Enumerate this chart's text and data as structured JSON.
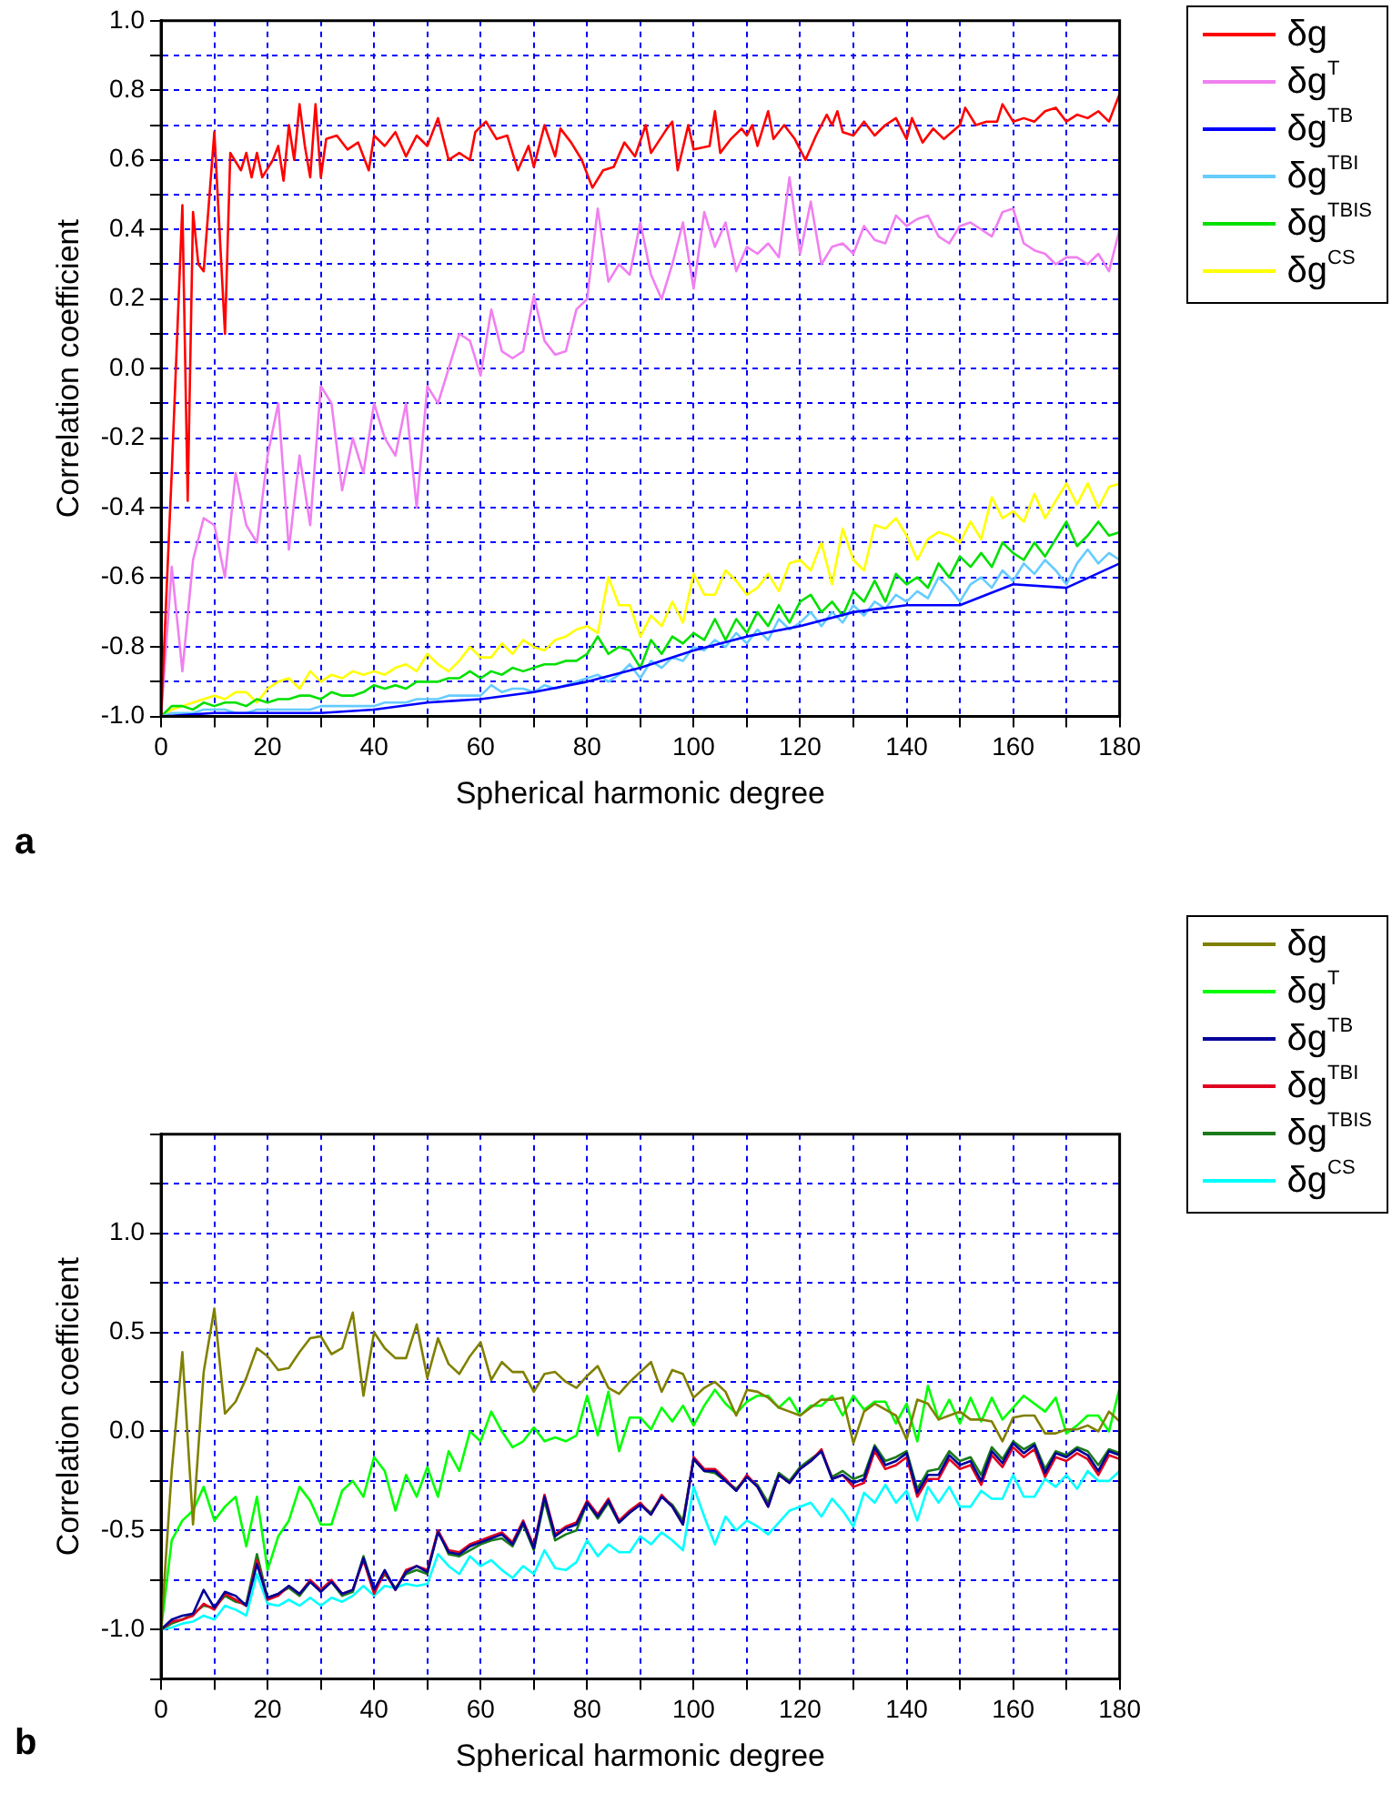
{
  "chart_data": [
    {
      "type": "line",
      "xlabel": "Spherical harmonic degree",
      "ylabel": "Correlation coefficient",
      "annotations": [
        "a"
      ],
      "xlim": [
        0,
        180
      ],
      "ylim": [
        -1,
        1
      ],
      "xticks": [
        0,
        {
          "value": 10,
          "label": null
        },
        20,
        {
          "value": 30,
          "label": null
        },
        40,
        {
          "value": 50,
          "label": null
        },
        60,
        {
          "value": 70,
          "label": null
        },
        80,
        {
          "value": 90,
          "label": null
        },
        100,
        {
          "value": 110,
          "label": null
        },
        120,
        {
          "value": 130,
          "label": null
        },
        140,
        {
          "value": 150,
          "label": null
        },
        160,
        {
          "value": 170,
          "label": null
        },
        180
      ],
      "yticks": [
        {
          "value": -1,
          "label": "-1.0"
        },
        {
          "value": -0.9,
          "label": null
        },
        {
          "value": -0.8,
          "label": "-0.8"
        },
        {
          "value": -0.7,
          "label": null
        },
        {
          "value": -0.6,
          "label": "-0.6"
        },
        {
          "value": -0.5,
          "label": null
        },
        {
          "value": -0.4,
          "label": "-0.4"
        },
        {
          "value": -0.3,
          "label": null
        },
        {
          "value": -0.2,
          "label": "-0.2"
        },
        {
          "value": -0.1,
          "label": null
        },
        {
          "value": 0,
          "label": "0.0"
        },
        {
          "value": 0.1,
          "label": null
        },
        {
          "value": 0.2,
          "label": "0.2"
        },
        {
          "value": 0.3,
          "label": null
        },
        {
          "value": 0.4,
          "label": "0.4"
        },
        {
          "value": 0.5,
          "label": null
        },
        {
          "value": 0.6,
          "label": "0.6"
        },
        {
          "value": 0.7,
          "label": null
        },
        {
          "value": 0.8,
          "label": "0.8"
        },
        {
          "value": 0.9,
          "label": null
        },
        {
          "value": 1,
          "label": "1.0"
        }
      ],
      "grid": true,
      "legend": "top right",
      "marker": "none",
      "line_style": "solid",
      "x": [
        0,
        2,
        4,
        6,
        8,
        10,
        12,
        14,
        16,
        18,
        20,
        22,
        24,
        26,
        28,
        30,
        32,
        34,
        36,
        38,
        40,
        42,
        44,
        46,
        48,
        50,
        52,
        54,
        56,
        58,
        60,
        62,
        64,
        66,
        68,
        70,
        72,
        74,
        76,
        78,
        80,
        82,
        84,
        86,
        88,
        90,
        92,
        94,
        96,
        98,
        100,
        102,
        104,
        106,
        108,
        110,
        112,
        114,
        116,
        118,
        120,
        122,
        124,
        126,
        128,
        130,
        132,
        134,
        136,
        138,
        140,
        142,
        144,
        146,
        148,
        150,
        152,
        154,
        156,
        158,
        160,
        162,
        164,
        166,
        168,
        170,
        172,
        174,
        176,
        178,
        180
      ],
      "series": [
        {
          "name": "δg",
          "color": "#ff0000",
          "x": [
            0,
            2,
            4,
            5,
            6,
            7,
            8,
            10,
            12,
            13,
            15,
            16,
            17,
            18,
            19,
            21,
            22,
            23,
            24,
            25,
            26,
            27,
            28,
            29,
            30,
            31,
            33,
            35,
            37,
            39,
            40,
            42,
            44,
            46,
            48,
            50,
            52,
            54,
            56,
            58,
            59,
            61,
            63,
            65,
            67,
            69,
            70,
            72,
            74,
            75,
            77,
            79,
            81,
            83,
            85,
            87,
            89,
            91,
            92,
            95,
            96,
            97,
            99,
            100,
            103,
            104,
            105,
            107,
            109,
            110,
            111,
            112,
            114,
            115,
            117,
            119,
            121,
            123,
            125,
            126,
            127,
            128,
            130,
            132,
            134,
            136,
            138,
            140,
            141,
            143,
            145,
            147,
            150,
            151,
            153,
            155,
            157,
            158,
            160,
            162,
            164,
            166,
            168,
            170,
            172,
            174,
            176,
            178,
            180
          ],
          "values": [
            -1,
            -0.3,
            0.47,
            -0.38,
            0.45,
            0.3,
            0.28,
            0.68,
            0.1,
            0.62,
            0.57,
            0.62,
            0.55,
            0.62,
            0.55,
            0.6,
            0.64,
            0.54,
            0.7,
            0.6,
            0.76,
            0.64,
            0.55,
            0.76,
            0.55,
            0.66,
            0.67,
            0.63,
            0.65,
            0.57,
            0.67,
            0.64,
            0.68,
            0.61,
            0.67,
            0.64,
            0.72,
            0.6,
            0.62,
            0.6,
            0.68,
            0.71,
            0.66,
            0.67,
            0.57,
            0.64,
            0.58,
            0.7,
            0.61,
            0.69,
            0.65,
            0.6,
            0.52,
            0.57,
            0.58,
            0.65,
            0.61,
            0.7,
            0.62,
            0.69,
            0.71,
            0.57,
            0.7,
            0.63,
            0.64,
            0.74,
            0.62,
            0.66,
            0.69,
            0.67,
            0.7,
            0.64,
            0.74,
            0.66,
            0.7,
            0.66,
            0.6,
            0.67,
            0.73,
            0.7,
            0.74,
            0.68,
            0.67,
            0.71,
            0.67,
            0.7,
            0.72,
            0.66,
            0.72,
            0.65,
            0.69,
            0.66,
            0.7,
            0.75,
            0.7,
            0.71,
            0.71,
            0.76,
            0.71,
            0.72,
            0.71,
            0.74,
            0.75,
            0.71,
            0.73,
            0.72,
            0.74,
            0.71,
            0.79
          ]
        },
        {
          "name": "δg$^{T}$",
          "color": "#f080f0",
          "values": [
            -1,
            -0.57,
            -0.87,
            -0.55,
            -0.43,
            -0.45,
            -0.6,
            -0.3,
            -0.45,
            -0.5,
            -0.25,
            -0.1,
            -0.52,
            -0.25,
            -0.45,
            -0.05,
            -0.1,
            -0.35,
            -0.2,
            -0.3,
            -0.1,
            -0.2,
            -0.25,
            -0.1,
            -0.4,
            -0.05,
            -0.1,
            0,
            0.1,
            0.08,
            -0.02,
            0.17,
            0.05,
            0.03,
            0.05,
            0.21,
            0.08,
            0.04,
            0.05,
            0.17,
            0.2,
            0.46,
            0.25,
            0.3,
            0.27,
            0.42,
            0.27,
            0.2,
            0.3,
            0.42,
            0.23,
            0.45,
            0.35,
            0.42,
            0.28,
            0.35,
            0.33,
            0.36,
            0.32,
            0.55,
            0.33,
            0.48,
            0.3,
            0.35,
            0.36,
            0.33,
            0.41,
            0.37,
            0.36,
            0.44,
            0.41,
            0.43,
            0.44,
            0.38,
            0.36,
            0.41,
            0.42,
            0.4,
            0.38,
            0.45,
            0.46,
            0.36,
            0.34,
            0.33,
            0.3,
            0.32,
            0.32,
            0.3,
            0.33,
            0.28,
            0.4
          ]
        },
        {
          "name": "δg$^{TB}$",
          "color": "#0000ff",
          "x": [
            0,
            10,
            20,
            30,
            40,
            50,
            60,
            70,
            80,
            90,
            100,
            110,
            120,
            130,
            140,
            150,
            160,
            170,
            180
          ],
          "values": [
            -1,
            -0.99,
            -0.99,
            -0.99,
            -0.98,
            -0.96,
            -0.95,
            -0.93,
            -0.9,
            -0.86,
            -0.81,
            -0.77,
            -0.74,
            -0.7,
            -0.68,
            -0.68,
            -0.62,
            -0.63,
            -0.56
          ]
        },
        {
          "name": "δg$^{TBI}$",
          "color": "#66ccff",
          "values": [
            -1,
            -0.99,
            -0.99,
            -0.99,
            -0.98,
            -0.98,
            -0.98,
            -0.99,
            -0.99,
            -0.98,
            -0.98,
            -0.98,
            -0.98,
            -0.98,
            -0.98,
            -0.97,
            -0.97,
            -0.97,
            -0.97,
            -0.97,
            -0.97,
            -0.96,
            -0.96,
            -0.96,
            -0.95,
            -0.95,
            -0.95,
            -0.94,
            -0.94,
            -0.94,
            -0.94,
            -0.91,
            -0.93,
            -0.92,
            -0.92,
            -0.93,
            -0.91,
            -0.92,
            -0.91,
            -0.9,
            -0.89,
            -0.88,
            -0.9,
            -0.88,
            -0.85,
            -0.89,
            -0.84,
            -0.86,
            -0.83,
            -0.84,
            -0.8,
            -0.81,
            -0.78,
            -0.8,
            -0.76,
            -0.79,
            -0.75,
            -0.78,
            -0.72,
            -0.75,
            -0.73,
            -0.7,
            -0.74,
            -0.7,
            -0.73,
            -0.68,
            -0.71,
            -0.67,
            -0.69,
            -0.65,
            -0.67,
            -0.64,
            -0.66,
            -0.6,
            -0.63,
            -0.67,
            -0.62,
            -0.6,
            -0.63,
            -0.58,
            -0.61,
            -0.56,
            -0.59,
            -0.55,
            -0.58,
            -0.62,
            -0.56,
            -0.52,
            -0.56,
            -0.53,
            -0.55
          ]
        },
        {
          "name": "δg$^{TBIS}$",
          "color": "#00e000",
          "values": [
            -1,
            -0.97,
            -0.97,
            -0.98,
            -0.96,
            -0.97,
            -0.96,
            -0.96,
            -0.97,
            -0.95,
            -0.96,
            -0.95,
            -0.95,
            -0.94,
            -0.94,
            -0.95,
            -0.93,
            -0.94,
            -0.94,
            -0.93,
            -0.91,
            -0.92,
            -0.91,
            -0.92,
            -0.9,
            -0.9,
            -0.9,
            -0.89,
            -0.89,
            -0.87,
            -0.89,
            -0.87,
            -0.88,
            -0.86,
            -0.87,
            -0.86,
            -0.85,
            -0.85,
            -0.84,
            -0.84,
            -0.82,
            -0.77,
            -0.82,
            -0.8,
            -0.81,
            -0.86,
            -0.78,
            -0.82,
            -0.77,
            -0.79,
            -0.76,
            -0.78,
            -0.72,
            -0.78,
            -0.72,
            -0.76,
            -0.7,
            -0.74,
            -0.68,
            -0.73,
            -0.67,
            -0.65,
            -0.7,
            -0.67,
            -0.71,
            -0.64,
            -0.67,
            -0.61,
            -0.67,
            -0.59,
            -0.62,
            -0.6,
            -0.63,
            -0.56,
            -0.6,
            -0.54,
            -0.57,
            -0.53,
            -0.57,
            -0.5,
            -0.53,
            -0.55,
            -0.5,
            -0.54,
            -0.49,
            -0.44,
            -0.51,
            -0.48,
            -0.44,
            -0.48,
            -0.47
          ]
        },
        {
          "name": "δg$^{CS}$",
          "color": "#ffff00",
          "values": [
            -1,
            -0.98,
            -0.97,
            -0.96,
            -0.95,
            -0.94,
            -0.95,
            -0.93,
            -0.93,
            -0.96,
            -0.92,
            -0.9,
            -0.89,
            -0.92,
            -0.87,
            -0.9,
            -0.88,
            -0.89,
            -0.87,
            -0.88,
            -0.87,
            -0.88,
            -0.86,
            -0.85,
            -0.87,
            -0.82,
            -0.85,
            -0.87,
            -0.84,
            -0.8,
            -0.83,
            -0.83,
            -0.79,
            -0.82,
            -0.78,
            -0.8,
            -0.81,
            -0.78,
            -0.77,
            -0.75,
            -0.74,
            -0.76,
            -0.6,
            -0.68,
            -0.68,
            -0.77,
            -0.71,
            -0.74,
            -0.67,
            -0.73,
            -0.59,
            -0.65,
            -0.65,
            -0.58,
            -0.61,
            -0.65,
            -0.63,
            -0.59,
            -0.64,
            -0.56,
            -0.55,
            -0.58,
            -0.5,
            -0.62,
            -0.46,
            -0.55,
            -0.58,
            -0.45,
            -0.46,
            -0.43,
            -0.48,
            -0.55,
            -0.49,
            -0.47,
            -0.48,
            -0.5,
            -0.44,
            -0.49,
            -0.37,
            -0.43,
            -0.41,
            -0.44,
            -0.36,
            -0.43,
            -0.38,
            -0.33,
            -0.39,
            -0.33,
            -0.4,
            -0.34,
            -0.33
          ]
        }
      ]
    },
    {
      "type": "line",
      "xlabel": "Spherical harmonic degree",
      "ylabel": "Correlation coefficient",
      "annotations": [
        "b"
      ],
      "xlim": [
        0,
        180
      ],
      "ylim": [
        -1.25,
        1.5
      ],
      "xticks": [
        0,
        {
          "value": 10,
          "label": null
        },
        20,
        {
          "value": 30,
          "label": null
        },
        40,
        {
          "value": 50,
          "label": null
        },
        60,
        {
          "value": 70,
          "label": null
        },
        80,
        {
          "value": 90,
          "label": null
        },
        100,
        {
          "value": 110,
          "label": null
        },
        120,
        {
          "value": 130,
          "label": null
        },
        140,
        {
          "value": 150,
          "label": null
        },
        160,
        {
          "value": 170,
          "label": null
        },
        180
      ],
      "yticks": [
        {
          "value": -1.25,
          "label": null
        },
        {
          "value": -1,
          "label": "-1.0"
        },
        {
          "value": -0.75,
          "label": null
        },
        {
          "value": -0.5,
          "label": "-0.5"
        },
        {
          "value": -0.25,
          "label": null
        },
        {
          "value": 0,
          "label": "0.0"
        },
        {
          "value": 0.25,
          "label": null
        },
        {
          "value": 0.5,
          "label": "0.5"
        },
        {
          "value": 0.75,
          "label": null
        },
        {
          "value": 1,
          "label": "1.0"
        },
        {
          "value": 1.25,
          "label": null
        },
        {
          "value": 1.5,
          "label": null
        }
      ],
      "grid": true,
      "legend": "top right",
      "marker": "none",
      "line_style": "solid",
      "x": [
        0,
        2,
        4,
        6,
        8,
        10,
        12,
        14,
        16,
        18,
        20,
        22,
        24,
        26,
        28,
        30,
        32,
        34,
        36,
        38,
        40,
        42,
        44,
        46,
        48,
        50,
        52,
        54,
        56,
        58,
        60,
        62,
        64,
        66,
        68,
        70,
        72,
        74,
        76,
        78,
        80,
        82,
        84,
        86,
        88,
        90,
        92,
        94,
        96,
        98,
        100,
        102,
        104,
        106,
        108,
        110,
        112,
        114,
        116,
        118,
        120,
        122,
        124,
        126,
        128,
        130,
        132,
        134,
        136,
        138,
        140,
        142,
        144,
        146,
        148,
        150,
        152,
        154,
        156,
        158,
        160,
        162,
        164,
        166,
        168,
        170,
        172,
        174,
        176,
        178,
        180
      ],
      "series": [
        {
          "name": "δg",
          "color": "#808000",
          "values": [
            -1,
            -0.2,
            0.4,
            -0.47,
            0.3,
            0.62,
            0.09,
            0.15,
            0.27,
            0.42,
            0.38,
            0.31,
            0.32,
            0.4,
            0.47,
            0.48,
            0.39,
            0.42,
            0.6,
            0.18,
            0.5,
            0.42,
            0.37,
            0.37,
            0.54,
            0.27,
            0.47,
            0.34,
            0.29,
            0.38,
            0.45,
            0.26,
            0.35,
            0.3,
            0.3,
            0.2,
            0.29,
            0.3,
            0.25,
            0.22,
            0.28,
            0.33,
            0.22,
            0.19,
            0.25,
            0.3,
            0.35,
            0.2,
            0.31,
            0.29,
            0.17,
            0.22,
            0.25,
            0.2,
            0.08,
            0.21,
            0.2,
            0.17,
            0.12,
            0.1,
            0.08,
            0.12,
            0.16,
            0.16,
            0.17,
            -0.06,
            0.1,
            0.14,
            0.11,
            0.08,
            -0.04,
            0.16,
            0.14,
            0.06,
            0.08,
            0.1,
            0.06,
            0.06,
            0.05,
            -0.05,
            0.07,
            0.08,
            0.08,
            -0.01,
            -0.01,
            0.01,
            0.01,
            0.03,
            0,
            0.1,
            0.05
          ]
        },
        {
          "name": "δg$^{T}$",
          "color": "#00ff00",
          "values": [
            -1,
            -0.55,
            -0.45,
            -0.4,
            -0.28,
            -0.45,
            -0.38,
            -0.33,
            -0.58,
            -0.33,
            -0.7,
            -0.53,
            -0.45,
            -0.28,
            -0.35,
            -0.47,
            -0.47,
            -0.3,
            -0.25,
            -0.33,
            -0.13,
            -0.2,
            -0.4,
            -0.22,
            -0.33,
            -0.18,
            -0.33,
            -0.1,
            -0.2,
            0,
            -0.05,
            0.1,
            0,
            -0.08,
            -0.05,
            0.02,
            -0.05,
            -0.03,
            -0.05,
            -0.02,
            0.18,
            -0.02,
            0.2,
            -0.1,
            0.07,
            0.07,
            0.01,
            0.12,
            0.05,
            0.13,
            0.03,
            0.13,
            0.21,
            0.14,
            0.09,
            0.15,
            0.18,
            0.18,
            0.12,
            0.17,
            0.08,
            0.13,
            0.13,
            0.18,
            0.08,
            0.18,
            0.11,
            0.15,
            0.15,
            0.04,
            0.14,
            -0.05,
            0.23,
            0.06,
            0.16,
            0.04,
            0.17,
            0.05,
            0.17,
            0.06,
            0.12,
            0.18,
            0.14,
            0.1,
            0.17,
            -0.01,
            0.03,
            0.08,
            0.08,
            0,
            0.22
          ]
        },
        {
          "name": "δg$^{TB}$",
          "color": "#000099",
          "values": [
            -1,
            -0.95,
            -0.93,
            -0.92,
            -0.8,
            -0.89,
            -0.81,
            -0.83,
            -0.88,
            -0.67,
            -0.84,
            -0.82,
            -0.78,
            -0.82,
            -0.76,
            -0.81,
            -0.76,
            -0.82,
            -0.8,
            -0.64,
            -0.8,
            -0.7,
            -0.8,
            -0.71,
            -0.68,
            -0.71,
            -0.51,
            -0.61,
            -0.62,
            -0.58,
            -0.56,
            -0.54,
            -0.52,
            -0.57,
            -0.46,
            -0.59,
            -0.33,
            -0.53,
            -0.49,
            -0.47,
            -0.36,
            -0.43,
            -0.35,
            -0.46,
            -0.41,
            -0.37,
            -0.42,
            -0.33,
            -0.38,
            -0.47,
            -0.14,
            -0.2,
            -0.2,
            -0.25,
            -0.3,
            -0.23,
            -0.28,
            -0.38,
            -0.22,
            -0.26,
            -0.19,
            -0.15,
            -0.1,
            -0.24,
            -0.22,
            -0.26,
            -0.24,
            -0.08,
            -0.17,
            -0.15,
            -0.11,
            -0.31,
            -0.22,
            -0.22,
            -0.12,
            -0.17,
            -0.15,
            -0.25,
            -0.1,
            -0.16,
            -0.06,
            -0.11,
            -0.07,
            -0.21,
            -0.11,
            -0.13,
            -0.09,
            -0.12,
            -0.2,
            -0.1,
            -0.12
          ]
        },
        {
          "name": "δg$^{TBI}$",
          "color": "#e00020",
          "values": [
            -1,
            -0.96,
            -0.95,
            -0.93,
            -0.87,
            -0.9,
            -0.82,
            -0.85,
            -0.88,
            -0.65,
            -0.85,
            -0.83,
            -0.78,
            -0.82,
            -0.75,
            -0.8,
            -0.75,
            -0.82,
            -0.8,
            -0.65,
            -0.82,
            -0.71,
            -0.8,
            -0.7,
            -0.68,
            -0.7,
            -0.5,
            -0.6,
            -0.61,
            -0.57,
            -0.55,
            -0.53,
            -0.51,
            -0.56,
            -0.45,
            -0.58,
            -0.32,
            -0.52,
            -0.48,
            -0.46,
            -0.35,
            -0.42,
            -0.34,
            -0.45,
            -0.4,
            -0.36,
            -0.42,
            -0.32,
            -0.38,
            -0.47,
            -0.13,
            -0.19,
            -0.19,
            -0.24,
            -0.3,
            -0.22,
            -0.28,
            -0.38,
            -0.22,
            -0.26,
            -0.19,
            -0.15,
            -0.09,
            -0.24,
            -0.22,
            -0.28,
            -0.26,
            -0.1,
            -0.19,
            -0.17,
            -0.13,
            -0.33,
            -0.24,
            -0.24,
            -0.14,
            -0.19,
            -0.17,
            -0.27,
            -0.12,
            -0.18,
            -0.08,
            -0.13,
            -0.09,
            -0.23,
            -0.13,
            -0.15,
            -0.11,
            -0.14,
            -0.22,
            -0.12,
            -0.14
          ]
        },
        {
          "name": "δg$^{TBIS}$",
          "color": "#1a7a1a",
          "values": [
            -1,
            -0.97,
            -0.95,
            -0.92,
            -0.88,
            -0.89,
            -0.83,
            -0.86,
            -0.87,
            -0.62,
            -0.84,
            -0.82,
            -0.79,
            -0.83,
            -0.76,
            -0.8,
            -0.76,
            -0.83,
            -0.81,
            -0.63,
            -0.8,
            -0.72,
            -0.79,
            -0.72,
            -0.7,
            -0.72,
            -0.5,
            -0.62,
            -0.63,
            -0.6,
            -0.57,
            -0.55,
            -0.54,
            -0.58,
            -0.47,
            -0.6,
            -0.35,
            -0.55,
            -0.52,
            -0.5,
            -0.36,
            -0.44,
            -0.36,
            -0.46,
            -0.41,
            -0.37,
            -0.41,
            -0.33,
            -0.37,
            -0.45,
            -0.14,
            -0.2,
            -0.21,
            -0.25,
            -0.29,
            -0.23,
            -0.27,
            -0.36,
            -0.21,
            -0.25,
            -0.18,
            -0.14,
            -0.1,
            -0.23,
            -0.2,
            -0.24,
            -0.22,
            -0.07,
            -0.15,
            -0.13,
            -0.1,
            -0.29,
            -0.2,
            -0.19,
            -0.1,
            -0.15,
            -0.13,
            -0.22,
            -0.08,
            -0.14,
            -0.05,
            -0.09,
            -0.06,
            -0.19,
            -0.1,
            -0.12,
            -0.08,
            -0.1,
            -0.17,
            -0.09,
            -0.11
          ]
        },
        {
          "name": "δg$^{CS}$",
          "color": "#00ffff",
          "values": [
            -1,
            -0.99,
            -0.97,
            -0.96,
            -0.93,
            -0.95,
            -0.88,
            -0.9,
            -0.93,
            -0.72,
            -0.87,
            -0.88,
            -0.85,
            -0.88,
            -0.84,
            -0.88,
            -0.84,
            -0.86,
            -0.83,
            -0.78,
            -0.83,
            -0.78,
            -0.79,
            -0.77,
            -0.78,
            -0.77,
            -0.62,
            -0.68,
            -0.72,
            -0.63,
            -0.68,
            -0.65,
            -0.7,
            -0.74,
            -0.68,
            -0.72,
            -0.6,
            -0.69,
            -0.7,
            -0.66,
            -0.55,
            -0.63,
            -0.57,
            -0.61,
            -0.61,
            -0.53,
            -0.57,
            -0.51,
            -0.55,
            -0.6,
            -0.28,
            -0.43,
            -0.57,
            -0.43,
            -0.5,
            -0.45,
            -0.48,
            -0.52,
            -0.46,
            -0.4,
            -0.38,
            -0.36,
            -0.43,
            -0.34,
            -0.4,
            -0.48,
            -0.31,
            -0.36,
            -0.27,
            -0.36,
            -0.3,
            -0.45,
            -0.28,
            -0.36,
            -0.28,
            -0.38,
            -0.38,
            -0.3,
            -0.34,
            -0.34,
            -0.22,
            -0.33,
            -0.33,
            -0.24,
            -0.28,
            -0.22,
            -0.29,
            -0.2,
            -0.25,
            -0.25,
            -0.2
          ]
        }
      ]
    }
  ]
}
